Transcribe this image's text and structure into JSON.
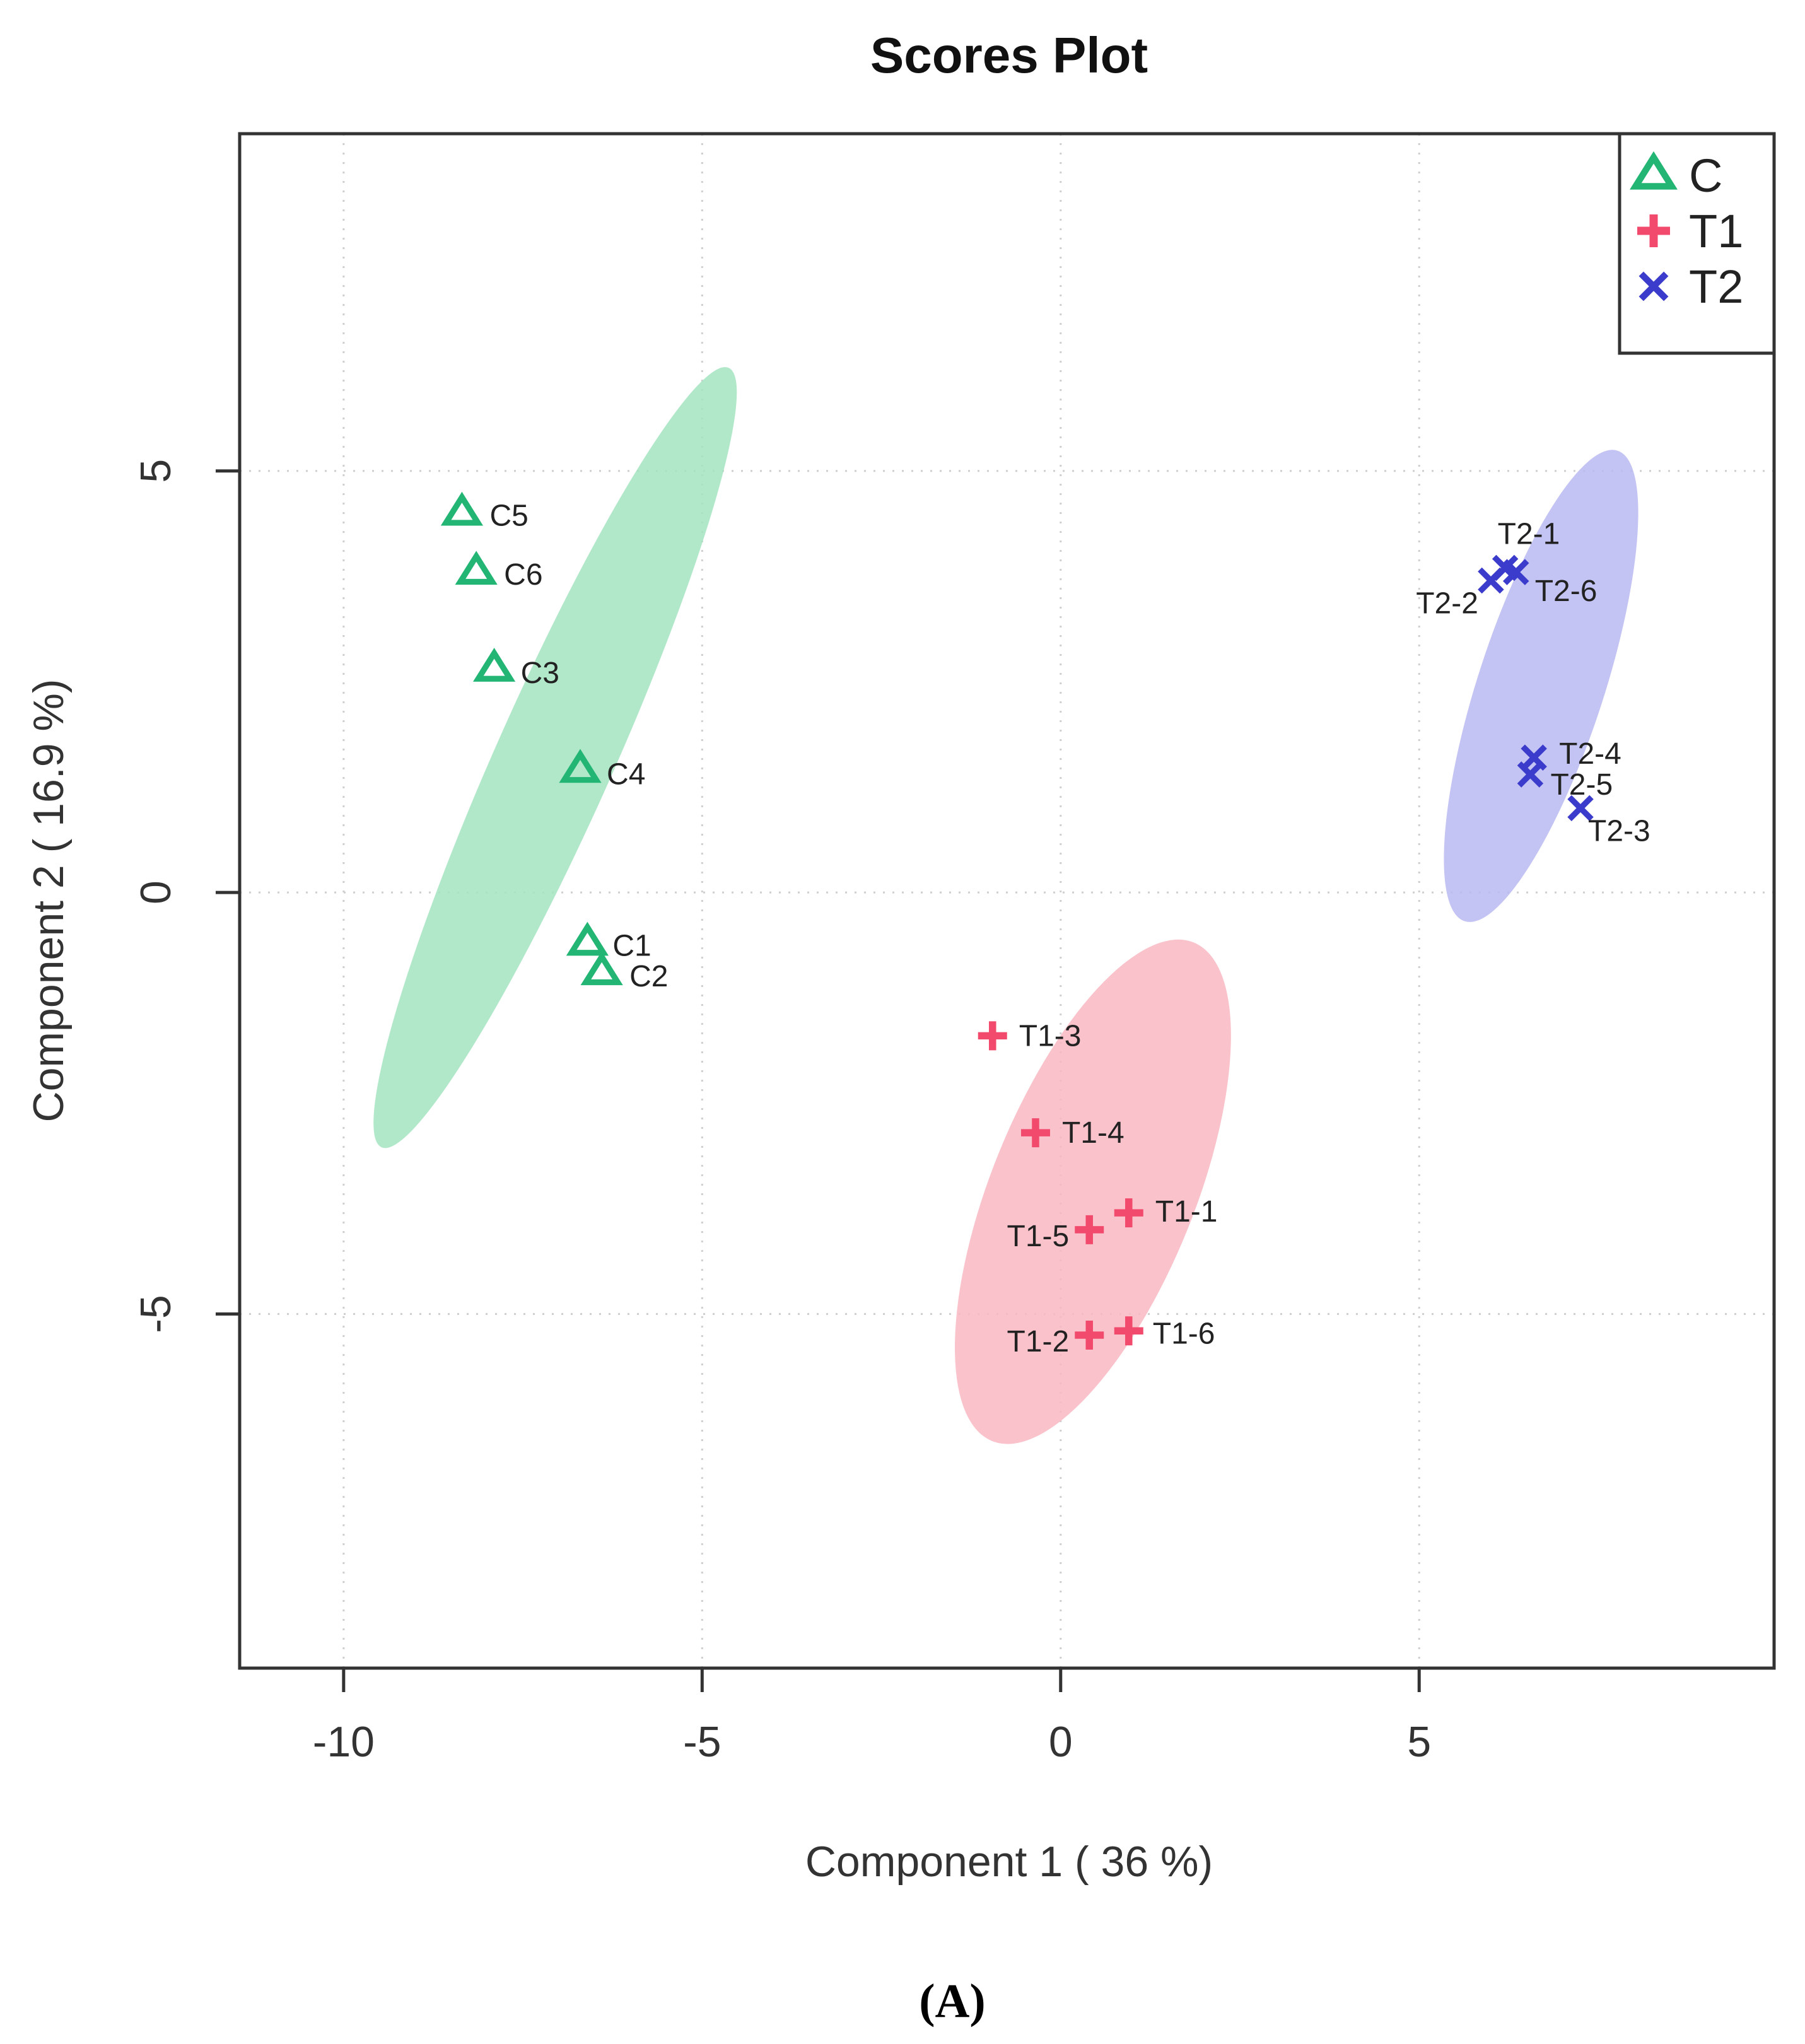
{
  "chart_data": {
    "type": "scatter",
    "title": "Scores Plot",
    "xlabel": "Component 1 ( 36 %)",
    "ylabel": "Component 2 ( 16.9 %)",
    "xlim": [
      -11.45,
      9.95
    ],
    "ylim": [
      -9.2,
      9.0
    ],
    "xticks": [
      -10,
      -5,
      0,
      5
    ],
    "yticks": [
      -5,
      0,
      5
    ],
    "xtick_labels": [
      "-10",
      "-5",
      "0",
      "5"
    ],
    "ytick_labels": [
      "-5",
      "0",
      "5"
    ],
    "grid": true,
    "legend_position": "top-right",
    "panel_label": "(A)",
    "series": [
      {
        "name": "C",
        "marker": "triangle",
        "color": "#22b573",
        "ellipse_color": "#a3e4bf",
        "ellipse": {
          "cx": -7.05,
          "cy": 1.6,
          "rx": 5.95,
          "ry": 0.82,
          "angle_deg": -66
        },
        "points": [
          {
            "label": "C1",
            "x": -6.6,
            "y": -0.6
          },
          {
            "label": "C2",
            "x": -6.4,
            "y": -0.95
          },
          {
            "label": "C3",
            "x": -7.9,
            "y": 2.65
          },
          {
            "label": "C4",
            "x": -6.7,
            "y": 1.45
          },
          {
            "label": "C5",
            "x": -8.35,
            "y": 4.5
          },
          {
            "label": "C6",
            "x": -8.15,
            "y": 3.8
          }
        ]
      },
      {
        "name": "T1",
        "marker": "plus",
        "color": "#f24a6c",
        "ellipse_color": "#f9b7c2",
        "ellipse": {
          "cx": 0.45,
          "cy": -3.55,
          "rx": 3.75,
          "ry": 1.42,
          "angle_deg": -68
        },
        "points": [
          {
            "label": "T1-1",
            "x": 0.95,
            "y": -3.8
          },
          {
            "label": "T1-2",
            "x": 0.4,
            "y": -5.25
          },
          {
            "label": "T1-3",
            "x": -0.95,
            "y": -1.7
          },
          {
            "label": "T1-4",
            "x": -0.35,
            "y": -2.85
          },
          {
            "label": "T1-5",
            "x": 0.4,
            "y": -4.0
          },
          {
            "label": "T1-6",
            "x": 0.95,
            "y": -5.2
          }
        ]
      },
      {
        "name": "T2",
        "marker": "x",
        "color": "#3b3bcc",
        "ellipse_color": "#b8b8f2",
        "ellipse": {
          "cx": 6.7,
          "cy": 2.45,
          "rx": 3.45,
          "ry": 0.88,
          "angle_deg": -72
        },
        "points": [
          {
            "label": "T2-1",
            "x": 6.2,
            "y": 3.85
          },
          {
            "label": "T2-2",
            "x": 6.0,
            "y": 3.7
          },
          {
            "label": "T2-3",
            "x": 7.25,
            "y": 1.0
          },
          {
            "label": "T2-4",
            "x": 6.6,
            "y": 1.6
          },
          {
            "label": "T2-5",
            "x": 6.55,
            "y": 1.4
          },
          {
            "label": "T2-6",
            "x": 6.35,
            "y": 3.8
          }
        ]
      }
    ]
  }
}
